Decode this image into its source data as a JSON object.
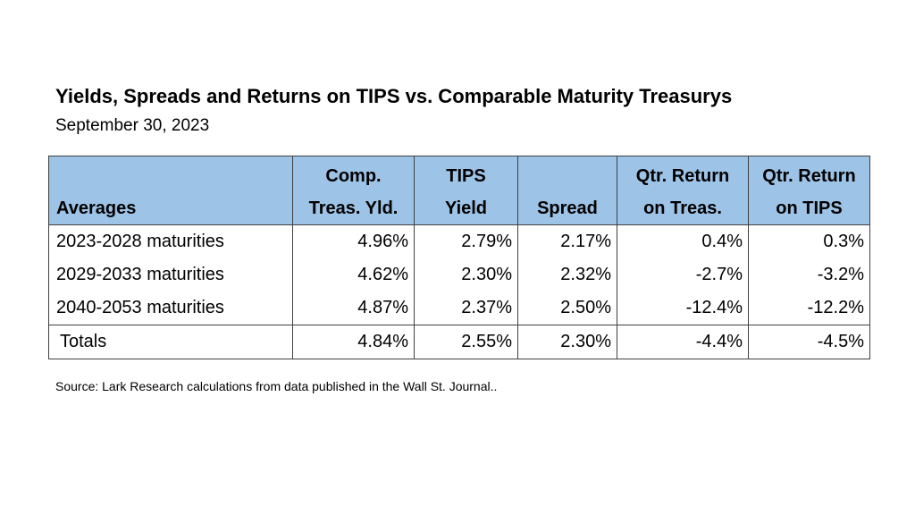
{
  "title": "Yields, Spreads and Returns on TIPS vs. Comparable Maturity Treasurys",
  "subtitle": "September 30, 2023",
  "table": {
    "headers": {
      "averages": "Averages",
      "comp_line1": "Comp.",
      "comp_line2": "Treas. Yld.",
      "tips_line1": "TIPS",
      "tips_line2": "Yield",
      "spread": "Spread",
      "qtr_treas_line1": "Qtr. Return",
      "qtr_treas_line2": "on Treas.",
      "qtr_tips_line1": "Qtr. Return",
      "qtr_tips_line2": "on TIPS"
    },
    "rows": [
      {
        "label": "2023-2028 maturities",
        "comp": "4.96%",
        "tips": "2.79%",
        "spread": "2.17%",
        "qtr_treas": "0.4%",
        "qtr_tips": "0.3%"
      },
      {
        "label": "2029-2033 maturities",
        "comp": "4.62%",
        "tips": "2.30%",
        "spread": "2.32%",
        "qtr_treas": "-2.7%",
        "qtr_tips": "-3.2%"
      },
      {
        "label": "2040-2053 maturities",
        "comp": "4.87%",
        "tips": "2.37%",
        "spread": "2.50%",
        "qtr_treas": "-12.4%",
        "qtr_tips": "-12.2%"
      }
    ],
    "totals": {
      "label": "Totals",
      "comp": "4.84%",
      "tips": "2.55%",
      "spread": "2.30%",
      "qtr_treas": "-4.4%",
      "qtr_tips": "-4.5%"
    }
  },
  "source": "Source:  Lark Research calculations from data published in the Wall St. Journal..",
  "colors": {
    "header_fill": "#9dc3e6",
    "border": "#404040"
  }
}
